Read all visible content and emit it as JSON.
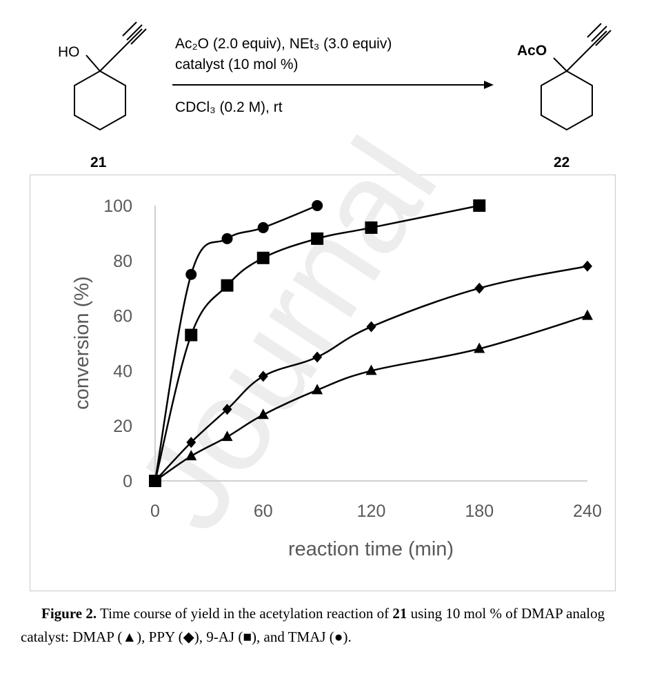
{
  "scheme": {
    "reactant_label": "21",
    "product_label": "22",
    "reactant_oh": "HO",
    "product_aco": "AcO",
    "conditions_line1": "Ac₂O (2.0 equiv), NEt₃ (3.0 equiv)",
    "conditions_line2": "catalyst (10 mol %)",
    "conditions_line3": "CDCl₃ (0.2 M), rt"
  },
  "watermark": "Journal",
  "chart_data": {
    "type": "line",
    "xlabel": "reaction time (min)",
    "ylabel": "conversion (%)",
    "xlim": [
      0,
      240
    ],
    "ylim": [
      0,
      100
    ],
    "xticks": [
      0,
      60,
      120,
      180,
      240
    ],
    "yticks": [
      0,
      20,
      40,
      60,
      80,
      100
    ],
    "grid": false,
    "series": [
      {
        "marker": "circle",
        "x": [
          0,
          20,
          40,
          60,
          90
        ],
        "y": [
          0,
          75,
          88,
          92,
          100
        ]
      },
      {
        "marker": "square",
        "x": [
          0,
          20,
          40,
          60,
          90,
          120,
          180
        ],
        "y": [
          0,
          53,
          71,
          81,
          88,
          92,
          100
        ]
      },
      {
        "marker": "diamond",
        "x": [
          0,
          20,
          40,
          60,
          90,
          120,
          180,
          240
        ],
        "y": [
          0,
          14,
          26,
          38,
          45,
          56,
          70,
          78
        ]
      },
      {
        "marker": "triangle",
        "x": [
          0,
          20,
          40,
          60,
          90,
          120,
          180,
          240
        ],
        "y": [
          0,
          9,
          16,
          24,
          33,
          40,
          48,
          60
        ]
      }
    ]
  },
  "caption": {
    "figure_label": "Figure 2.",
    "text_before": " Time course of yield in the acetylation reaction of ",
    "compound": "21",
    "text_after": " using 10 mol % of DMAP analog catalyst: DMAP (▲), PPY (◆), 9-AJ (■), and TMAJ (●)."
  }
}
